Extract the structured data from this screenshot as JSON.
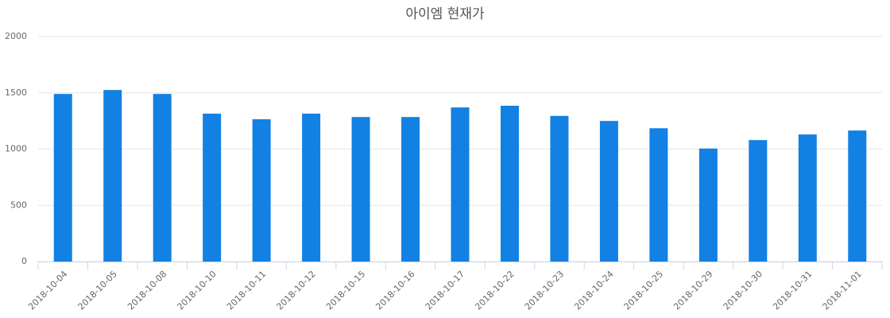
{
  "chart_data": {
    "type": "bar",
    "title": "아이엠 현재가",
    "categories": [
      "2018-10-04",
      "2018-10-05",
      "2018-10-08",
      "2018-10-10",
      "2018-10-11",
      "2018-10-12",
      "2018-10-15",
      "2018-10-16",
      "2018-10-17",
      "2018-10-22",
      "2018-10-23",
      "2018-10-24",
      "2018-10-25",
      "2018-10-29",
      "2018-10-30",
      "2018-10-31",
      "2018-11-01"
    ],
    "values": [
      1490,
      1525,
      1490,
      1315,
      1265,
      1315,
      1285,
      1285,
      1370,
      1385,
      1295,
      1250,
      1185,
      1005,
      1080,
      1130,
      1165
    ],
    "color": "#1380e3",
    "ylim": [
      0,
      2000
    ],
    "yticks": [
      0,
      500,
      1000,
      1500,
      2000
    ],
    "grid": true
  }
}
